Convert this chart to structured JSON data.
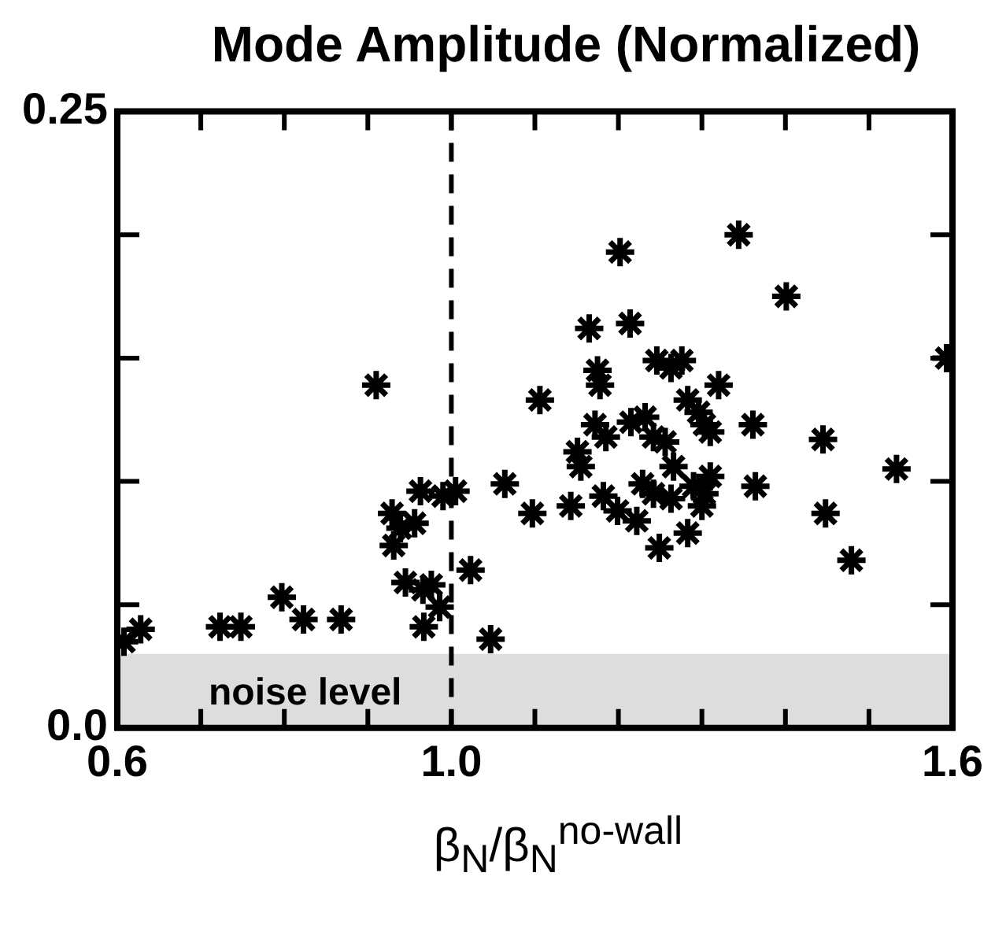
{
  "chart_data": {
    "type": "scatter",
    "title": "Mode Amplitude (Normalized)",
    "xlabel": "β$_{N}$/β$_{N}$$^{no-wall}$",
    "x": [
      0.608,
      0.628,
      0.723,
      0.748,
      0.797,
      0.823,
      0.868,
      0.91,
      0.929,
      0.931,
      0.939,
      0.956,
      0.963,
      0.945,
      0.966,
      0.976,
      0.967,
      0.986,
      0.99,
      1.005,
      1.023,
      1.047,
      1.064,
      1.097,
      1.106,
      1.143,
      1.151,
      1.155,
      1.165,
      1.175,
      1.178,
      1.172,
      1.185,
      1.182,
      1.202,
      1.214,
      1.199,
      1.222,
      1.215,
      1.232,
      1.242,
      1.246,
      1.256,
      1.229,
      1.242,
      1.249,
      1.263,
      1.276,
      1.283,
      1.296,
      1.303,
      1.31,
      1.32,
      1.29,
      1.303,
      1.3,
      1.283,
      1.263,
      1.344,
      1.361,
      1.364,
      1.401,
      1.445,
      1.448,
      1.479,
      1.533,
      1.593,
      1.266,
      1.31
    ],
    "series": [
      {
        "color": "#000000",
        "values": [
          0.035,
          0.04,
          0.041,
          0.041,
          0.053,
          0.044,
          0.044,
          0.139,
          0.087,
          0.074,
          0.081,
          0.083,
          0.096,
          0.059,
          0.056,
          0.058,
          0.041,
          0.049,
          0.094,
          0.096,
          0.064,
          0.036,
          0.099,
          0.087,
          0.133,
          0.09,
          0.112,
          0.106,
          0.162,
          0.145,
          0.139,
          0.123,
          0.118,
          0.094,
          0.193,
          0.164,
          0.088,
          0.084,
          0.124,
          0.126,
          0.118,
          0.149,
          0.116,
          0.099,
          0.095,
          0.073,
          0.146,
          0.149,
          0.133,
          0.128,
          0.123,
          0.12,
          0.139,
          0.098,
          0.095,
          0.09,
          0.079,
          0.093,
          0.2,
          0.123,
          0.098,
          0.175,
          0.117,
          0.087,
          0.068,
          0.105,
          0.15,
          0.106,
          0.102
        ]
      }
    ],
    "xlim": [
      0.6,
      1.6
    ],
    "xticks": [
      0.6,
      {
        "value": 0.7,
        "label": null
      },
      {
        "value": 0.8,
        "label": null
      },
      {
        "value": 0.9,
        "label": null
      },
      {
        "value": 1.0,
        "label": "1.0"
      },
      {
        "value": 1.1,
        "label": null
      },
      {
        "value": 1.2,
        "label": null
      },
      {
        "value": 1.3,
        "label": null
      },
      {
        "value": 1.4,
        "label": null
      },
      {
        "value": 1.5,
        "label": null
      },
      1.6
    ],
    "ylim": [
      0,
      0.25
    ],
    "yticks": [
      {
        "value": 0,
        "label": "0.0"
      },
      {
        "value": 0.05,
        "label": null
      },
      {
        "value": 0.1,
        "label": null
      },
      {
        "value": 0.15,
        "label": null
      },
      {
        "value": 0.2,
        "label": null
      },
      0.25
    ],
    "ref_lines": [
      {
        "axis": "x",
        "value": 1.0,
        "line_style": "dashed",
        "color": "#000000"
      }
    ],
    "bands": [
      {
        "axis": "y",
        "from": 0,
        "to": 0.03,
        "label": "noise level",
        "color": "#dddddd"
      }
    ],
    "marker": "cross",
    "grid": false,
    "legend": false
  }
}
